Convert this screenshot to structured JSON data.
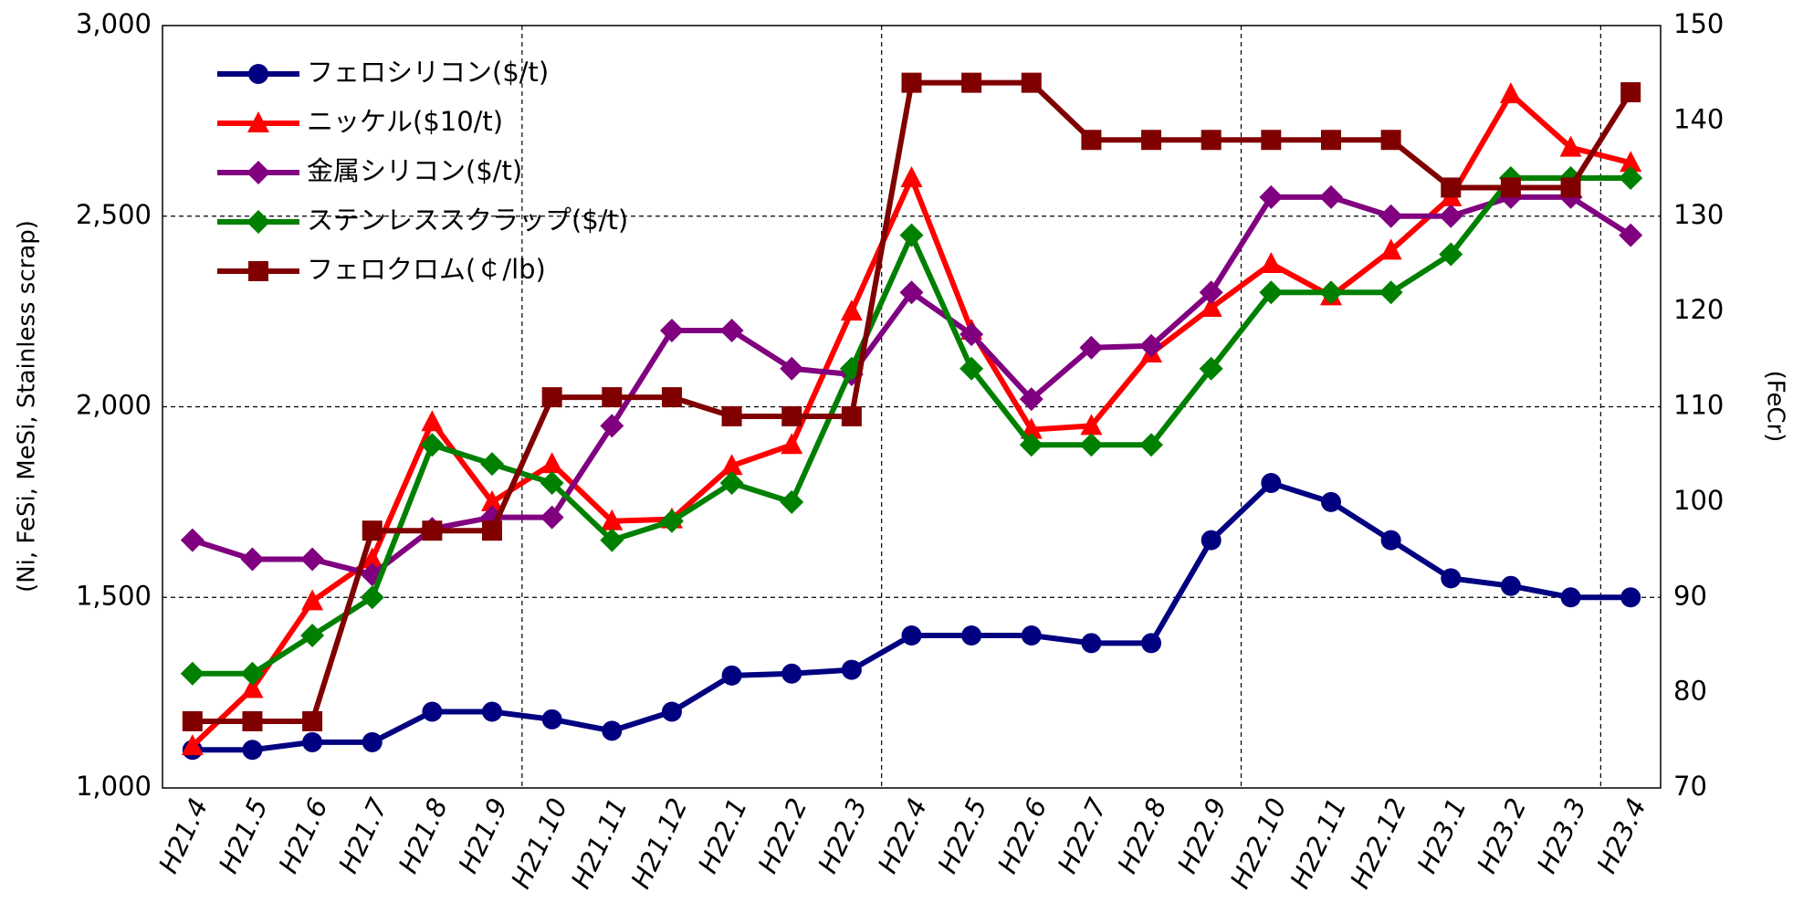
{
  "chart_data": {
    "type": "line",
    "y_label": "(Ni, FeSi, MeSi, Stainless scrap)",
    "y2_label": "(FeCr)",
    "categories": [
      "H21.4",
      "H21.5",
      "H21.6",
      "H21.7",
      "H21.8",
      "H21.9",
      "H21.10",
      "H21.11",
      "H21.12",
      "H22.1",
      "H22.2",
      "H22.3",
      "H22.4",
      "H22.5",
      "H22.6",
      "H22.7",
      "H22.8",
      "H22.9",
      "H22.10",
      "H22.11",
      "H22.12",
      "H23.1",
      "H23.2",
      "H23.3",
      "H23.4"
    ],
    "series": [
      {
        "name": "フェロシリコン($/t)",
        "color": "#000080",
        "marker": "circle",
        "values": [
          1100,
          1100,
          1120,
          1120,
          1200,
          1200,
          1180,
          1150,
          1200,
          1295,
          1300,
          1310,
          1400,
          1400,
          1400,
          1380,
          1380,
          1650,
          1800,
          1750,
          1650,
          1550,
          1530,
          1500,
          1500
        ]
      },
      {
        "name": "ニッケル($10/t)",
        "color": "#ff0000",
        "marker": "triangle",
        "values": [
          1110,
          1260,
          1490,
          1600,
          1960,
          1750,
          1850,
          1700,
          1705,
          1845,
          1900,
          2250,
          2600,
          2200,
          1940,
          1950,
          2140,
          2260,
          2375,
          2290,
          2410,
          2550,
          2820,
          2680,
          2640
        ]
      },
      {
        "name": "金属シリコン($/t)",
        "color": "#800080",
        "marker": "diamond",
        "values": [
          1650,
          1600,
          1600,
          1560,
          1680,
          1710,
          1710,
          1950,
          2200,
          2200,
          2100,
          2085,
          2300,
          2190,
          2020,
          2155,
          2160,
          2300,
          2550,
          2550,
          2500,
          2500,
          2550,
          2550,
          2450
        ]
      },
      {
        "name": "ステンレススクラップ($/t)",
        "color": "#008000",
        "marker": "diamond",
        "values": [
          1300,
          1300,
          1400,
          1500,
          1900,
          1850,
          1800,
          1650,
          1700,
          1800,
          1750,
          2100,
          2450,
          2100,
          1900,
          1900,
          1900,
          2100,
          2300,
          2300,
          2300,
          2400,
          2600,
          2600,
          2600
        ]
      },
      {
        "name": "フェロクロム(￠/lb)",
        "color": "#800000",
        "marker": "square",
        "axis": "y2",
        "values": [
          77,
          77,
          77,
          97,
          97,
          97,
          111,
          111,
          111,
          109,
          109,
          109,
          144,
          144,
          144,
          138,
          138,
          138,
          138,
          138,
          138,
          133,
          133,
          133,
          143
        ]
      }
    ],
    "ylim": [
      1000,
      3000
    ],
    "yticks": [
      {
        "value": 1000,
        "label": "1,000"
      },
      {
        "value": 1500,
        "label": "1,500"
      },
      {
        "value": 2000,
        "label": "2,000"
      },
      {
        "value": 2500,
        "label": "2,500"
      },
      {
        "value": 3000,
        "label": "3,000"
      }
    ],
    "y2lim": [
      70,
      150
    ],
    "y2ticks": [
      70,
      80,
      90,
      100,
      110,
      120,
      130,
      140,
      150
    ],
    "grid": true,
    "legend": "top-left"
  }
}
